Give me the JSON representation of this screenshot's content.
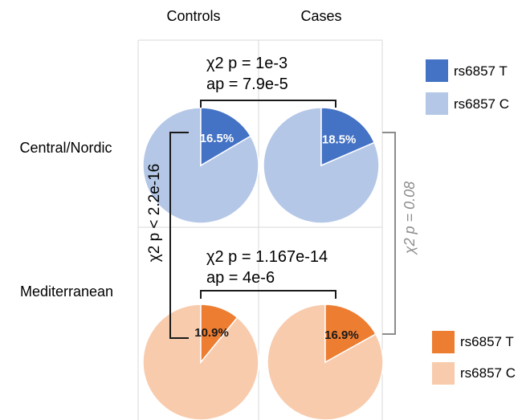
{
  "columns": [
    "Controls",
    "Cases"
  ],
  "rows": [
    "Central/Nordic",
    "Mediterranean"
  ],
  "colors": {
    "nordic_T": "#4472c4",
    "nordic_C": "#b4c7e7",
    "med_T": "#ed7d31",
    "med_C": "#f8cbad",
    "grid": "#d9d9d9",
    "gray_stat": "#8c8c8c"
  },
  "tests": {
    "nordic": {
      "line1": "χ2 p = 1e-3",
      "line2": "ap = 7.9e-5"
    },
    "med": {
      "line1": "χ2 p = 1.167e-14",
      "line2": "ap = 4e-6"
    },
    "controls_vertical": "χ2 p < 2.2e-16",
    "cases_vertical": "χ2 p = 0.08"
  },
  "legend_top": [
    {
      "label": "rs6857 T",
      "color": "#4472c4"
    },
    {
      "label": "rs6857 C",
      "color": "#b4c7e7"
    }
  ],
  "legend_bottom": [
    {
      "label": "rs6857 T",
      "color": "#ed7d31"
    },
    {
      "label": "rs6857 C",
      "color": "#f8cbad"
    }
  ],
  "chart_data": [
    {
      "type": "pie",
      "row": "Central/Nordic",
      "column": "Controls",
      "slices": [
        {
          "name": "rs6857 T",
          "value": 16.5,
          "label": "16.5%"
        },
        {
          "name": "rs6857 C",
          "value": 83.5
        }
      ]
    },
    {
      "type": "pie",
      "row": "Central/Nordic",
      "column": "Cases",
      "slices": [
        {
          "name": "rs6857 T",
          "value": 18.5,
          "label": "18.5%"
        },
        {
          "name": "rs6857 C",
          "value": 81.5
        }
      ]
    },
    {
      "type": "pie",
      "row": "Mediterranean",
      "column": "Controls",
      "slices": [
        {
          "name": "rs6857 T",
          "value": 10.9,
          "label": "10.9%"
        },
        {
          "name": "rs6857 C",
          "value": 89.1
        }
      ]
    },
    {
      "type": "pie",
      "row": "Mediterranean",
      "column": "Cases",
      "slices": [
        {
          "name": "rs6857 T",
          "value": 16.9,
          "label": "16.9%"
        },
        {
          "name": "rs6857 C",
          "value": 83.1
        }
      ]
    }
  ]
}
